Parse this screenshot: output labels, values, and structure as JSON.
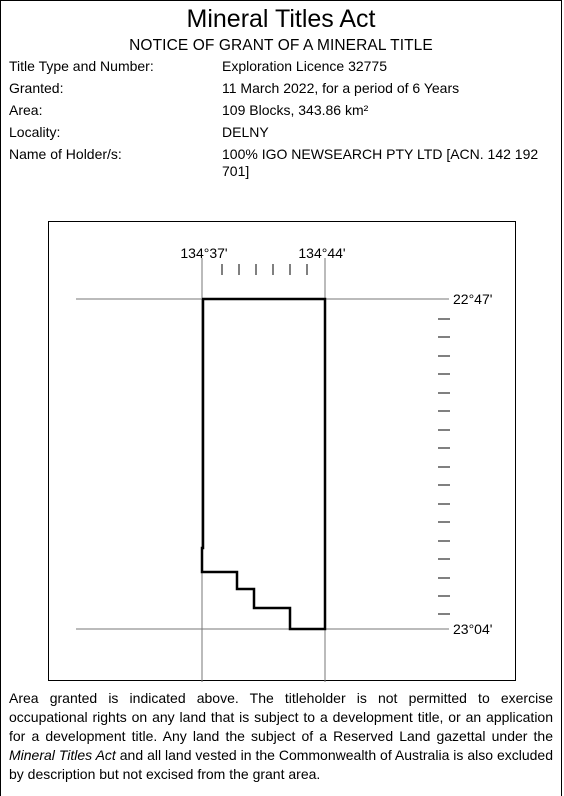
{
  "document": {
    "title": "Mineral Titles Act",
    "subtitle": "NOTICE OF GRANT OF A  MINERAL TITLE",
    "fields": [
      {
        "label": "Title Type and Number:",
        "value": "Exploration Licence 32775"
      },
      {
        "label": "Granted:",
        "value": "11 March 2022, for a period of 6 Years"
      },
      {
        "label": "Area:",
        "value": "109 Blocks, 343.86 km²"
      },
      {
        "label": "Locality:",
        "value": "DELNY"
      },
      {
        "label": "Name of Holder/s:",
        "value": "100% IGO NEWSEARCH PTY LTD [ACN. 142 192 701]"
      }
    ],
    "map": {
      "longitude_labels": [
        "134°37'",
        "134°44'"
      ],
      "latitude_labels": [
        "22°47'",
        "23°04'"
      ]
    },
    "note": {
      "part1": "Area granted is indicated above. The titleholder is not permitted to exercise occupational rights on any land that is subject to a development title, or an application for a development title. Any land the subject of a Reserved Land gazettal under the ",
      "act_name": "Mineral Titles Act",
      "part2": " and all land vested in the Commonwealth of Australia is also excluded by description but not excised from the grant area."
    }
  }
}
